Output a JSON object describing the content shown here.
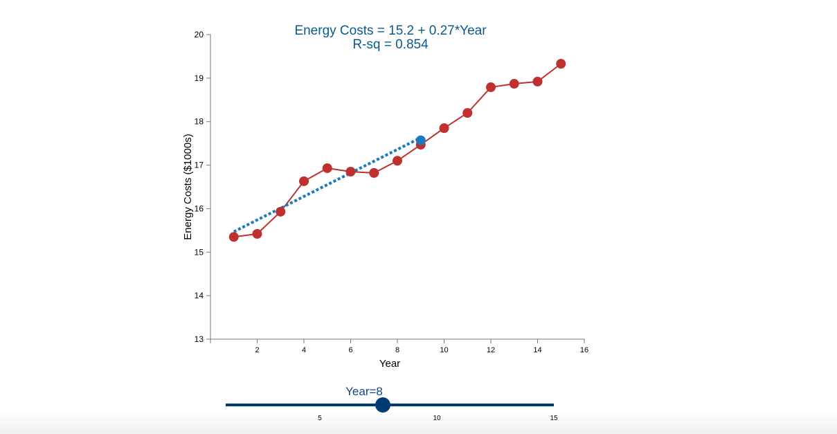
{
  "chart_data": {
    "type": "line",
    "title": "Energy Costs = 15.2 + 0.27*Year",
    "subtitle": "R-sq = 0.854",
    "xlabel": "Year",
    "ylabel": "Energy Costs ($1000s)",
    "xlim": [
      0,
      16
    ],
    "ylim": [
      13,
      20
    ],
    "xticks": [
      2,
      4,
      6,
      8,
      10,
      12,
      14,
      16
    ],
    "yticks": [
      13,
      14,
      15,
      16,
      17,
      18,
      19,
      20
    ],
    "grid": false,
    "series": [
      {
        "x": [
          1,
          2,
          3,
          4,
          5,
          6,
          7,
          8,
          9,
          10,
          11,
          12,
          13,
          14,
          15
        ],
        "y": [
          15.35,
          15.42,
          15.93,
          16.63,
          16.93,
          16.85,
          16.82,
          17.1,
          17.47,
          17.85,
          18.2,
          18.79,
          18.87,
          18.92,
          19.33
        ],
        "color": "#c0302f"
      }
    ],
    "fit_line": {
      "intercept": 15.2,
      "slope": 0.27,
      "x_range": [
        1,
        9
      ],
      "color": "#1a7abf",
      "style": "dotted"
    },
    "highlight_point": {
      "x": 9,
      "y": 17.57,
      "color": "#1a7abf"
    }
  },
  "slider": {
    "label": "Year=8",
    "value": 8,
    "min": 1,
    "max": 15,
    "ticks": [
      "5",
      "10",
      "15"
    ],
    "color": "#003b73"
  }
}
